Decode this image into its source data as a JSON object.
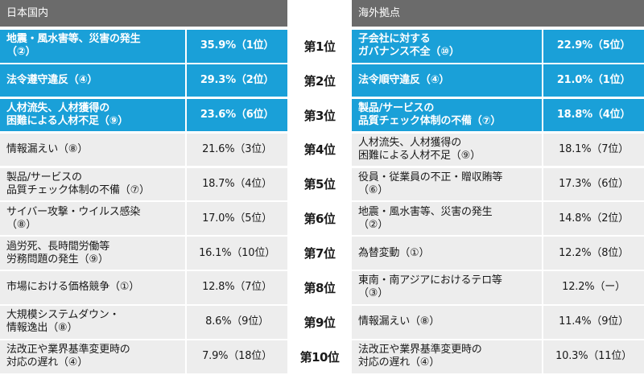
{
  "domestic": {
    "title": "日本国内",
    "rows": [
      {
        "label": "地震・風水害等、災害の発生\n（②）",
        "pct": "35.9%（1位）"
      },
      {
        "label": "法令遵守違反（④）",
        "pct": "29.3%（2位）"
      },
      {
        "label": "人材流失、人材獲得の\n困難による人材不足（⑨）",
        "pct": "23.6%（6位）"
      },
      {
        "label": "情報漏えい（⑧）",
        "pct": "21.6%（3位）"
      },
      {
        "label": "製品/サービスの\n品質チェック体制の不備（⑦）",
        "pct": "18.7%（4位）"
      },
      {
        "label": "サイバー攻撃・ウイルス感染\n（⑧）",
        "pct": "17.0%（5位）"
      },
      {
        "label": "過労死、長時間労働等\n労務問題の発生（⑨）",
        "pct": "16.1%（10位）"
      },
      {
        "label": "市場における価格競争（①）",
        "pct": "12.8%（7位）"
      },
      {
        "label": "大規模システムダウン・\n情報逸出（⑧）",
        "pct": "8.6%（9位）"
      },
      {
        "label": "法改正や業界基準変更時の\n対応の遅れ（④）",
        "pct": "7.9%（18位）"
      }
    ]
  },
  "overseas": {
    "title": "海外拠点",
    "rows": [
      {
        "label": "子会社に対する\nガバナンス不全（⑩）",
        "pct": "22.9%（5位）"
      },
      {
        "label": "法令順守違反（④）",
        "pct": "21.0%（1位）"
      },
      {
        "label": "製品/サービスの\n品質チェック体制の不備（⑦）",
        "pct": "18.8%（4位）"
      },
      {
        "label": "人材流失、人材獲得の\n困難による人材不足（⑨）",
        "pct": "18.1%（7位）"
      },
      {
        "label": "役員・従業員の不正・贈収賄等\n（⑥）",
        "pct": "17.3%（6位）"
      },
      {
        "label": "地震・風水害等、災害の発生\n（②）",
        "pct": "14.8%（2位）"
      },
      {
        "label": "為替変動（①）",
        "pct": "12.2%（8位）"
      },
      {
        "label": "東南・南アジアにおけるテロ等\n（③）",
        "pct": "12.2%（ー）"
      },
      {
        "label": "情報漏えい（⑧）",
        "pct": "11.4%（9位）"
      },
      {
        "label": "法改正や業界基準変更時の\n対応の遅れ（④）",
        "pct": "10.3%（11位）"
      }
    ]
  },
  "ranks": [
    "第1位",
    "第2位",
    "第3位",
    "第4位",
    "第5位",
    "第6位",
    "第7位",
    "第8位",
    "第9位",
    "第10位"
  ],
  "colors": {
    "header": "#6b6b6b",
    "highlight": "#1aa0d8",
    "row": "#ededed"
  }
}
